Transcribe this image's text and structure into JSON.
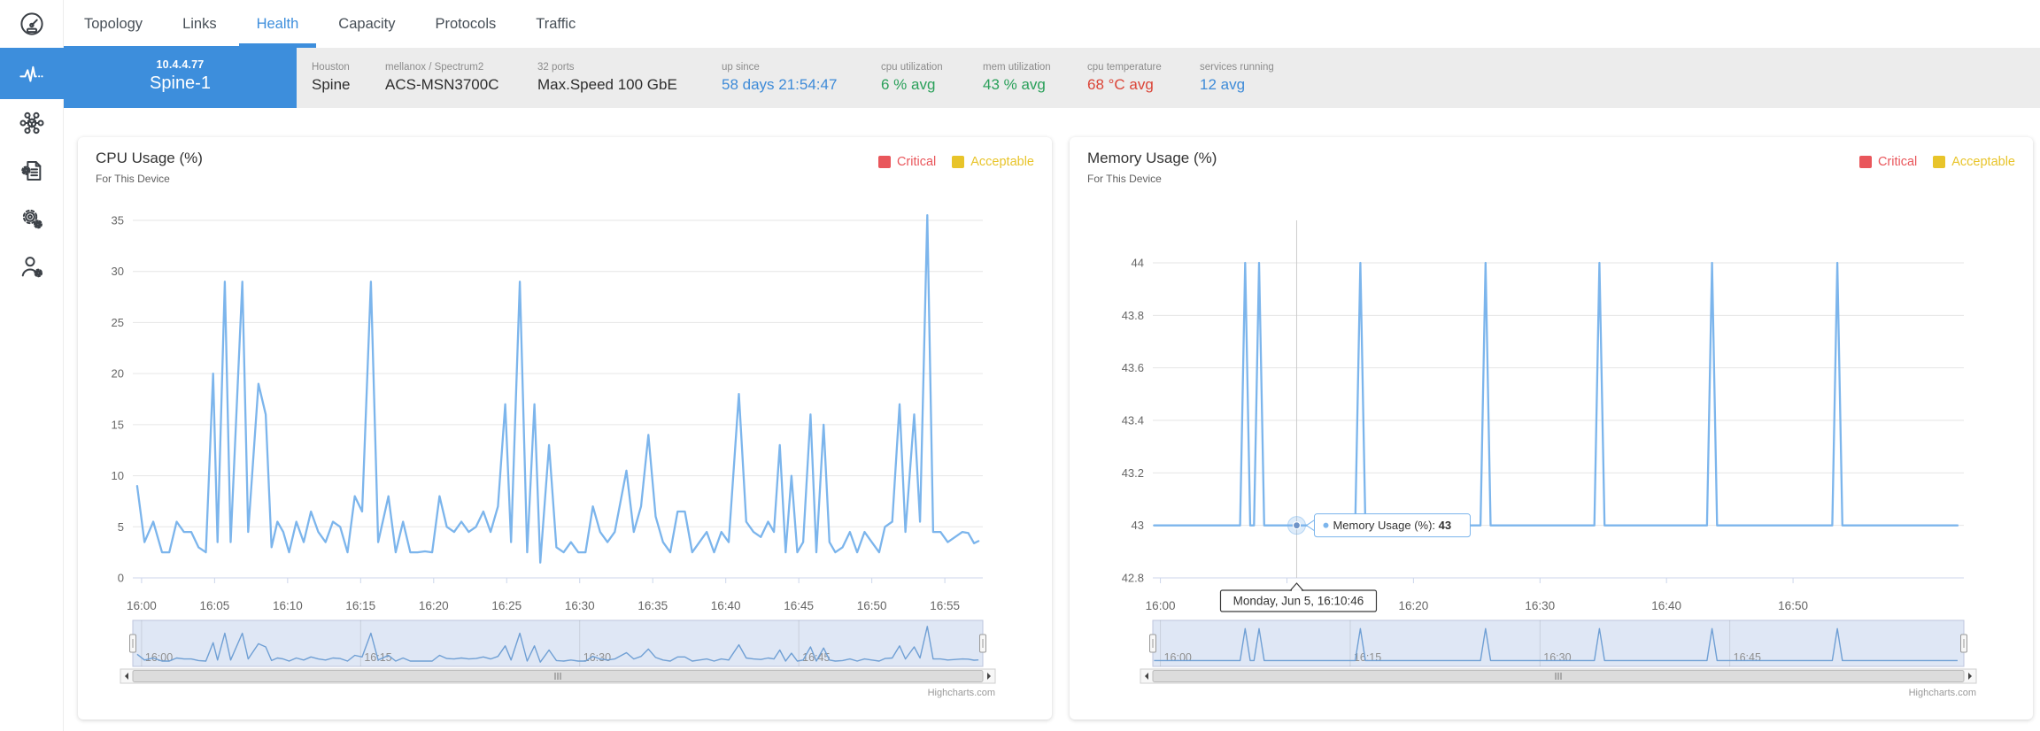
{
  "nav": {
    "tabs": [
      {
        "label": "Topology",
        "active": false
      },
      {
        "label": "Links",
        "active": false
      },
      {
        "label": "Health",
        "active": true
      },
      {
        "label": "Capacity",
        "active": false
      },
      {
        "label": "Protocols",
        "active": false
      },
      {
        "label": "Traffic",
        "active": false
      }
    ]
  },
  "sidebar": {
    "items": [
      "dashboard-gauge",
      "health-pulse",
      "network-topology",
      "validation-doc",
      "settings-gears",
      "user-admin"
    ]
  },
  "colors": {
    "accent": "#3d8edc",
    "green": "#2aa05a",
    "red": "#db4437",
    "blue": "#3e8bd8",
    "series": "#7cb5ec",
    "grid": "#e6e6e6",
    "axis": "#ccd6eb"
  },
  "device": {
    "ip": "10.4.4.77",
    "name": "Spine-1",
    "fields": [
      {
        "label": "Houston",
        "value": "Spine",
        "color": "#2d2d2d",
        "minw": 53
      },
      {
        "label": "mellanox / Spectrum2",
        "value": "ACS-MSN3700C",
        "color": "#2d2d2d",
        "minw": 142
      },
      {
        "label": "32 ports",
        "value": "Max.Speed 100 GbE",
        "color": "#2d2d2d",
        "minw": 178
      },
      {
        "label": "up since",
        "value": "58 days 21:54:47",
        "color": "#3e8bd8",
        "minw": 150
      },
      {
        "label": "cpu utilization",
        "value": "6 % avg",
        "color": "#2aa05a",
        "minw": 85
      },
      {
        "label": "mem utilization",
        "value": "43 % avg",
        "color": "#2aa05a",
        "minw": 88
      },
      {
        "label": "cpu temperature",
        "value": "68 °C avg",
        "color": "#db4437",
        "minw": 97
      },
      {
        "label": "services running",
        "value": "12 avg",
        "color": "#3e8bd8",
        "minw": 100
      }
    ]
  },
  "chart_data": [
    {
      "type": "line",
      "title": "CPU Usage (%)",
      "subtitle": "For This Device",
      "legend": [
        {
          "label": "Critical",
          "color": "#e9565b"
        },
        {
          "label": "Acceptable",
          "color": "#e8c42a"
        }
      ],
      "series": [
        {
          "name": "CPU Usage (%)",
          "color": "#7cb5ec",
          "points": [
            [
              -0.3,
              9
            ],
            [
              0.2,
              3.5
            ],
            [
              0.8,
              5.5
            ],
            [
              1.4,
              2.5
            ],
            [
              1.9,
              2.5
            ],
            [
              2.4,
              5.5
            ],
            [
              2.9,
              4.5
            ],
            [
              3.4,
              4.5
            ],
            [
              3.9,
              3
            ],
            [
              4.4,
              2.5
            ],
            [
              4.9,
              20
            ],
            [
              5.2,
              3.5
            ],
            [
              5.7,
              29
            ],
            [
              6.1,
              3.5
            ],
            [
              6.9,
              29
            ],
            [
              7.3,
              4.5
            ],
            [
              8.0,
              19
            ],
            [
              8.5,
              16
            ],
            [
              8.9,
              3
            ],
            [
              9.3,
              5.5
            ],
            [
              9.7,
              4.5
            ],
            [
              10.1,
              2.5
            ],
            [
              10.6,
              5.5
            ],
            [
              11.1,
              3.5
            ],
            [
              11.6,
              6.5
            ],
            [
              12.1,
              4.5
            ],
            [
              12.6,
              3.5
            ],
            [
              13.1,
              5.5
            ],
            [
              13.6,
              5
            ],
            [
              14.1,
              2.5
            ],
            [
              14.6,
              8
            ],
            [
              15.1,
              6.5
            ],
            [
              15.7,
              29
            ],
            [
              16.2,
              3.5
            ],
            [
              16.9,
              8
            ],
            [
              17.4,
              2.5
            ],
            [
              17.9,
              5.5
            ],
            [
              18.4,
              2.5
            ],
            [
              18.9,
              2.5
            ],
            [
              19.4,
              2.6
            ],
            [
              19.9,
              2.5
            ],
            [
              20.4,
              8
            ],
            [
              20.9,
              5
            ],
            [
              21.4,
              4.5
            ],
            [
              21.9,
              5.5
            ],
            [
              22.4,
              4.5
            ],
            [
              22.9,
              5
            ],
            [
              23.4,
              6.5
            ],
            [
              23.9,
              4.5
            ],
            [
              24.4,
              7
            ],
            [
              24.9,
              17
            ],
            [
              25.3,
              3.5
            ],
            [
              25.9,
              29
            ],
            [
              26.4,
              2.5
            ],
            [
              26.9,
              17
            ],
            [
              27.3,
              1.5
            ],
            [
              27.9,
              13
            ],
            [
              28.4,
              3
            ],
            [
              28.9,
              2.5
            ],
            [
              29.4,
              3.5
            ],
            [
              29.9,
              2.5
            ],
            [
              30.4,
              2.5
            ],
            [
              30.9,
              7
            ],
            [
              31.4,
              4.5
            ],
            [
              31.9,
              3.5
            ],
            [
              32.4,
              4.5
            ],
            [
              33.2,
              10.5
            ],
            [
              33.7,
              4.5
            ],
            [
              34.2,
              7
            ],
            [
              34.7,
              14
            ],
            [
              35.2,
              6
            ],
            [
              35.7,
              3.5
            ],
            [
              36.2,
              2.5
            ],
            [
              36.7,
              6.5
            ],
            [
              37.2,
              6.5
            ],
            [
              37.7,
              2.5
            ],
            [
              38.2,
              3.5
            ],
            [
              38.7,
              4.5
            ],
            [
              39.2,
              2.5
            ],
            [
              39.7,
              4.5
            ],
            [
              40.2,
              3.5
            ],
            [
              40.9,
              18
            ],
            [
              41.4,
              5.5
            ],
            [
              41.9,
              4.5
            ],
            [
              42.4,
              4
            ],
            [
              42.9,
              5.5
            ],
            [
              43.3,
              4.5
            ],
            [
              43.7,
              13
            ],
            [
              44.1,
              2.5
            ],
            [
              44.5,
              10
            ],
            [
              44.9,
              2.5
            ],
            [
              45.3,
              3.5
            ],
            [
              45.8,
              16
            ],
            [
              46.2,
              2.5
            ],
            [
              46.7,
              15
            ],
            [
              47.1,
              3.5
            ],
            [
              47.5,
              2.5
            ],
            [
              48.0,
              3
            ],
            [
              48.5,
              4.5
            ],
            [
              49.0,
              2.5
            ],
            [
              49.5,
              4.5
            ],
            [
              50.0,
              3.5
            ],
            [
              50.5,
              2.5
            ],
            [
              50.9,
              5
            ],
            [
              51.4,
              5.5
            ],
            [
              51.9,
              17
            ],
            [
              52.3,
              4.5
            ],
            [
              52.9,
              16
            ],
            [
              53.3,
              5.5
            ],
            [
              53.8,
              35.5
            ],
            [
              54.2,
              4.5
            ],
            [
              54.7,
              4.5
            ],
            [
              55.2,
              3.5
            ],
            [
              55.7,
              4
            ],
            [
              56.2,
              4.5
            ],
            [
              56.6,
              4.4
            ],
            [
              57.0,
              3.4
            ],
            [
              57.3,
              3.6
            ]
          ]
        }
      ],
      "x_range": [
        -0.6,
        57.6
      ],
      "y_range": [
        0,
        35
      ],
      "nav_range": [
        0,
        37
      ],
      "y_ticks": [
        {
          "v": 0,
          "l": "0"
        },
        {
          "v": 5,
          "l": "5"
        },
        {
          "v": 10,
          "l": "10"
        },
        {
          "v": 15,
          "l": "15"
        },
        {
          "v": 20,
          "l": "20"
        },
        {
          "v": 25,
          "l": "25"
        },
        {
          "v": 30,
          "l": "30"
        },
        {
          "v": 35,
          "l": "35"
        }
      ],
      "x_ticks": [
        {
          "t": 0,
          "label": "16:00"
        },
        {
          "t": 5,
          "label": "16:05"
        },
        {
          "t": 10,
          "label": "16:10"
        },
        {
          "t": 15,
          "label": "16:15"
        },
        {
          "t": 20,
          "label": "16:20"
        },
        {
          "t": 25,
          "label": "16:25"
        },
        {
          "t": 30,
          "label": "16:30"
        },
        {
          "t": 35,
          "label": "16:35"
        },
        {
          "t": 40,
          "label": "16:40"
        },
        {
          "t": 45,
          "label": "16:45"
        },
        {
          "t": 50,
          "label": "16:50"
        },
        {
          "t": 55,
          "label": "16:55"
        }
      ],
      "navigator_labels": [
        {
          "t": 0,
          "label": "16:00"
        },
        {
          "t": 15,
          "label": "16:15"
        },
        {
          "t": 30,
          "label": "16:30"
        },
        {
          "t": 45,
          "label": "16:45"
        }
      ],
      "credits": "Highcharts.com"
    },
    {
      "type": "line",
      "title": "Memory Usage (%)",
      "subtitle": "For This Device",
      "legend": [
        {
          "label": "Critical",
          "color": "#e9565b"
        },
        {
          "label": "Acceptable",
          "color": "#e8c42a"
        }
      ],
      "series": [
        {
          "name": "Memory Usage (%)",
          "color": "#7cb5ec",
          "points": [
            [
              -0.5,
              43
            ],
            [
              6.3,
              43
            ],
            [
              6.7,
              44
            ],
            [
              7.1,
              43
            ],
            [
              7.4,
              43
            ],
            [
              7.8,
              44
            ],
            [
              8.2,
              43
            ],
            [
              15.4,
              43
            ],
            [
              15.8,
              44
            ],
            [
              16.2,
              43
            ],
            [
              25.3,
              43
            ],
            [
              25.7,
              44
            ],
            [
              26.1,
              43
            ],
            [
              34.3,
              43
            ],
            [
              34.7,
              44
            ],
            [
              35.1,
              43
            ],
            [
              43.2,
              43
            ],
            [
              43.6,
              44
            ],
            [
              44.0,
              43
            ],
            [
              53.1,
              43
            ],
            [
              53.5,
              44
            ],
            [
              53.9,
              43
            ],
            [
              63.0,
              43
            ]
          ]
        }
      ],
      "x_range": [
        -0.6,
        63.5
      ],
      "y_range": [
        42.8,
        44
      ],
      "nav_range": [
        42.9,
        44.12
      ],
      "y_ticks": [
        {
          "v": 42.8,
          "l": "42.8"
        },
        {
          "v": 43,
          "l": "43"
        },
        {
          "v": 43.2,
          "l": "43.2"
        },
        {
          "v": 43.4,
          "l": "43.4"
        },
        {
          "v": 43.6,
          "l": "43.6"
        },
        {
          "v": 43.8,
          "l": "43.8"
        },
        {
          "v": 44,
          "l": "44"
        }
      ],
      "x_ticks": [
        {
          "t": 0,
          "label": "16:00"
        },
        {
          "t": 10,
          "label": "16:10"
        },
        {
          "t": 20,
          "label": "16:20"
        },
        {
          "t": 30,
          "label": "16:30"
        },
        {
          "t": 40,
          "label": "16:40"
        },
        {
          "t": 50,
          "label": "16:50"
        }
      ],
      "navigator_labels": [
        {
          "t": 0,
          "label": "16:00"
        },
        {
          "t": 15,
          "label": "16:15"
        },
        {
          "t": 30,
          "label": "16:30"
        },
        {
          "t": 45,
          "label": "16:45"
        }
      ],
      "tooltip": {
        "t": 10.77,
        "value": 43,
        "series_label": "Memory Usage (%):",
        "value_label": "43",
        "date_label": "Monday, Jun 5, 16:10:46"
      },
      "credits": "Highcharts.com"
    }
  ]
}
